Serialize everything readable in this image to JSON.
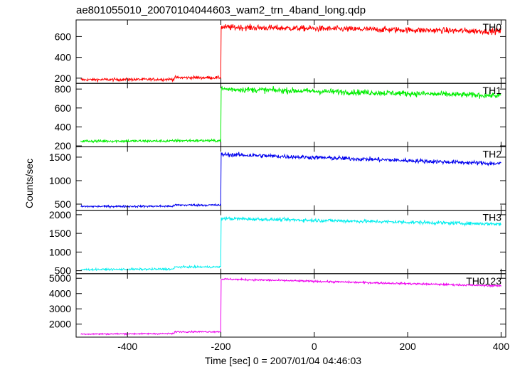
{
  "title": "ae801055010_20070104044603_wam2_trn_4band_long.qdp",
  "xlabel": "Time [sec] 0 = 2007/01/04 04:46:03",
  "ylabel": "Counts/sec",
  "chart_data": {
    "type": "line",
    "title": "ae801055010_20070104044603_wam2_trn_4band_long.qdp",
    "xlabel": "Time [sec] 0 = 2007/01/04 04:46:03",
    "ylabel": "Counts/sec",
    "xlim": [
      -510,
      410
    ],
    "xticks": [
      -400,
      -200,
      0,
      200,
      400
    ],
    "grid": false,
    "panels": [
      {
        "name": "TH0",
        "color": "#ff0000",
        "ylim": [
          150,
          760
        ],
        "yticks": [
          200,
          400,
          600
        ],
        "values": {
          "pre_start": 185,
          "pre_end": 205,
          "post_start": 690,
          "post_end": 650
        },
        "noise": {
          "pre": 14,
          "post": 28
        }
      },
      {
        "name": "TH1",
        "color": "#00ee00",
        "ylim": [
          190,
          860
        ],
        "yticks": [
          200,
          400,
          600,
          800
        ],
        "values": {
          "pre_start": 250,
          "pre_end": 255,
          "post_start": 800,
          "post_end": 730
        },
        "noise": {
          "pre": 14,
          "post": 30
        }
      },
      {
        "name": "TH2",
        "color": "#0000ee",
        "ylim": [
          370,
          1720
        ],
        "yticks": [
          500,
          1000,
          1500
        ],
        "values": {
          "pre_start": 450,
          "pre_end": 480,
          "post_start": 1560,
          "post_end": 1360
        },
        "noise": {
          "pre": 22,
          "post": 45
        }
      },
      {
        "name": "TH3",
        "color": "#00eeee",
        "ylim": [
          420,
          2120
        ],
        "yticks": [
          500,
          1000,
          1500,
          2000
        ],
        "values": {
          "pre_start": 530,
          "pre_end": 600,
          "post_start": 1900,
          "post_end": 1750
        },
        "noise": {
          "pre": 25,
          "post": 45
        }
      },
      {
        "name": "TH0123",
        "color": "#ee00ee",
        "ylim": [
          1150,
          5300
        ],
        "yticks": [
          2000,
          3000,
          4000,
          5000
        ],
        "values": {
          "pre_start": 1350,
          "pre_end": 1500,
          "post_start": 4950,
          "post_end": 4500
        },
        "noise": {
          "pre": 45,
          "post": 60
        }
      }
    ],
    "step_time": -200,
    "pre_step_time": -300,
    "data_range": [
      -500,
      400
    ]
  }
}
